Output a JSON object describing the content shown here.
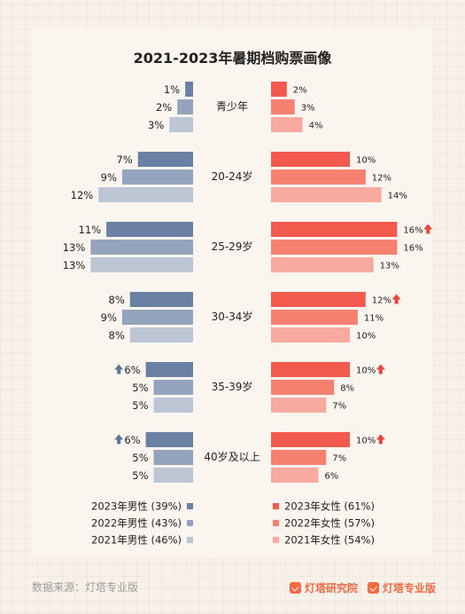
{
  "chart_data": {
    "type": "bar",
    "title": "2021-2023年暑期档购票画像",
    "unit": "%",
    "categories": [
      "青少年",
      "20-24岁",
      "25-29岁",
      "30-34岁",
      "35-39岁",
      "40岁及以上"
    ],
    "series": [
      {
        "name": "2023年男性 (39%)",
        "side": "male",
        "year": "2023",
        "color": "#6a81a3",
        "values": [
          1,
          7,
          11,
          8,
          6,
          6
        ],
        "increase": [
          false,
          false,
          false,
          false,
          true,
          true
        ]
      },
      {
        "name": "2022年男性 (43%)",
        "side": "male",
        "year": "2022",
        "color": "#94a4bc",
        "values": [
          2,
          9,
          13,
          9,
          5,
          5
        ],
        "increase": [
          false,
          false,
          false,
          false,
          false,
          false
        ]
      },
      {
        "name": "2021年男性 (46%)",
        "side": "male",
        "year": "2021",
        "color": "#bcc6d4",
        "values": [
          3,
          12,
          13,
          8,
          5,
          5
        ],
        "increase": [
          false,
          false,
          false,
          false,
          false,
          false
        ]
      },
      {
        "name": "2023年女性 (61%)",
        "side": "female",
        "year": "2023",
        "color": "#f25a4d",
        "values": [
          2,
          10,
          16,
          12,
          10,
          10
        ],
        "increase": [
          false,
          false,
          true,
          true,
          true,
          true
        ]
      },
      {
        "name": "2022年女性 (57%)",
        "side": "female",
        "year": "2022",
        "color": "#f78170",
        "values": [
          3,
          12,
          16,
          11,
          8,
          7
        ],
        "increase": [
          false,
          false,
          false,
          false,
          false,
          false
        ]
      },
      {
        "name": "2021年女性 (54%)",
        "side": "female",
        "year": "2021",
        "color": "#f9aaa0",
        "values": [
          4,
          14,
          13,
          10,
          7,
          6
        ],
        "increase": [
          false,
          false,
          false,
          false,
          false,
          false
        ]
      }
    ],
    "increase_marker_color_female": "#e8453c",
    "increase_marker_color_male": "#5d7598",
    "legend_placement": "bottom"
  },
  "footer": {
    "source": "数据来源：灯塔专业版",
    "brand1": "灯塔研究院",
    "brand2": "灯塔专业版"
  }
}
